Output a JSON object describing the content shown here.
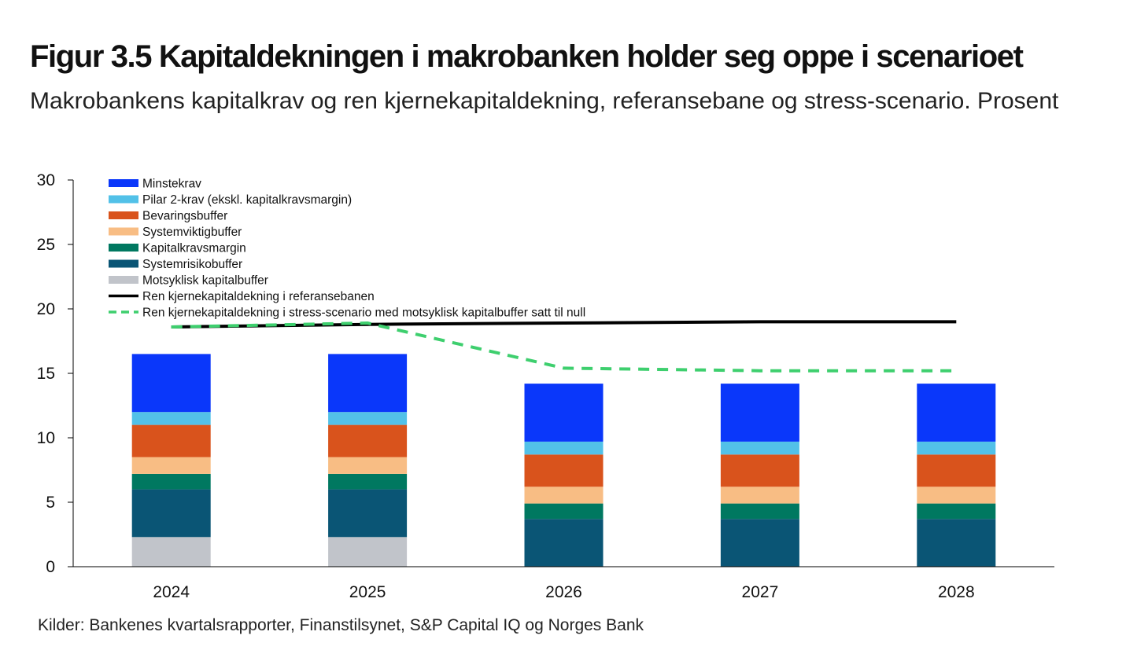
{
  "header": {
    "title": "Figur 3.5 Kapitaldekningen i makrobanken holder seg oppe i scenarioet",
    "subtitle": "Makrobankens kapitalkrav og ren kjernekapitaldekning, referansebane og stress-scenario. Prosent"
  },
  "footer": {
    "source": "Kilder: Bankenes kvartalsrapporter, Finanstilsynet, S&P Capital IQ og Norges Bank"
  },
  "chart_data": {
    "type": "bar",
    "stacked": true,
    "categories": [
      "2024",
      "2025",
      "2026",
      "2027",
      "2028"
    ],
    "ylim": [
      0,
      30
    ],
    "yticks": [
      0,
      5,
      10,
      15,
      20,
      25,
      30
    ],
    "grid": false,
    "legend_position": "top-left",
    "series": [
      {
        "name": "Motsyklisk kapitalbuffer",
        "kind": "bar",
        "color": "#c1c4ca",
        "values": [
          2.3,
          2.3,
          0,
          0,
          0
        ]
      },
      {
        "name": "Systemrisikobuffer",
        "kind": "bar",
        "color": "#0a5575",
        "values": [
          3.7,
          3.7,
          3.7,
          3.7,
          3.7
        ]
      },
      {
        "name": "Kapitalkravsmargin",
        "kind": "bar",
        "color": "#007860",
        "values": [
          1.2,
          1.2,
          1.2,
          1.2,
          1.2
        ]
      },
      {
        "name": "Systemviktigbuffer",
        "kind": "bar",
        "color": "#f8bd84",
        "values": [
          1.3,
          1.3,
          1.3,
          1.3,
          1.3
        ]
      },
      {
        "name": "Bevaringsbuffer",
        "kind": "bar",
        "color": "#d9531c",
        "values": [
          2.5,
          2.5,
          2.5,
          2.5,
          2.5
        ]
      },
      {
        "name": "Pilar 2-krav (ekskl. kapitalkravsmargin)",
        "kind": "bar",
        "color": "#52c1e8",
        "values": [
          1.0,
          1.0,
          1.0,
          1.0,
          1.0
        ]
      },
      {
        "name": "Minstekrav",
        "kind": "bar",
        "color": "#0a37fa",
        "values": [
          4.5,
          4.5,
          4.5,
          4.5,
          4.5
        ]
      },
      {
        "name": "Ren kjernekapitaldekning i referansebanen",
        "kind": "line",
        "style": "solid",
        "color": "#000000",
        "values": [
          18.6,
          18.8,
          18.9,
          19.0,
          19.0
        ]
      },
      {
        "name": "Ren kjernekapitaldekning i stress-scenario med motsyklisk kapitalbuffer satt til null",
        "kind": "line",
        "style": "dashed",
        "color": "#3ecf6e",
        "values": [
          18.6,
          18.9,
          15.4,
          15.2,
          15.2
        ]
      }
    ],
    "legend_order": [
      "Minstekrav",
      "Pilar 2-krav (ekskl. kapitalkravsmargin)",
      "Bevaringsbuffer",
      "Systemviktigbuffer",
      "Kapitalkravsmargin",
      "Systemrisikobuffer",
      "Motsyklisk kapitalbuffer",
      "Ren kjernekapitaldekning i referansebanen",
      "Ren kjernekapitaldekning i stress-scenario med motsyklisk kapitalbuffer satt til null"
    ]
  }
}
